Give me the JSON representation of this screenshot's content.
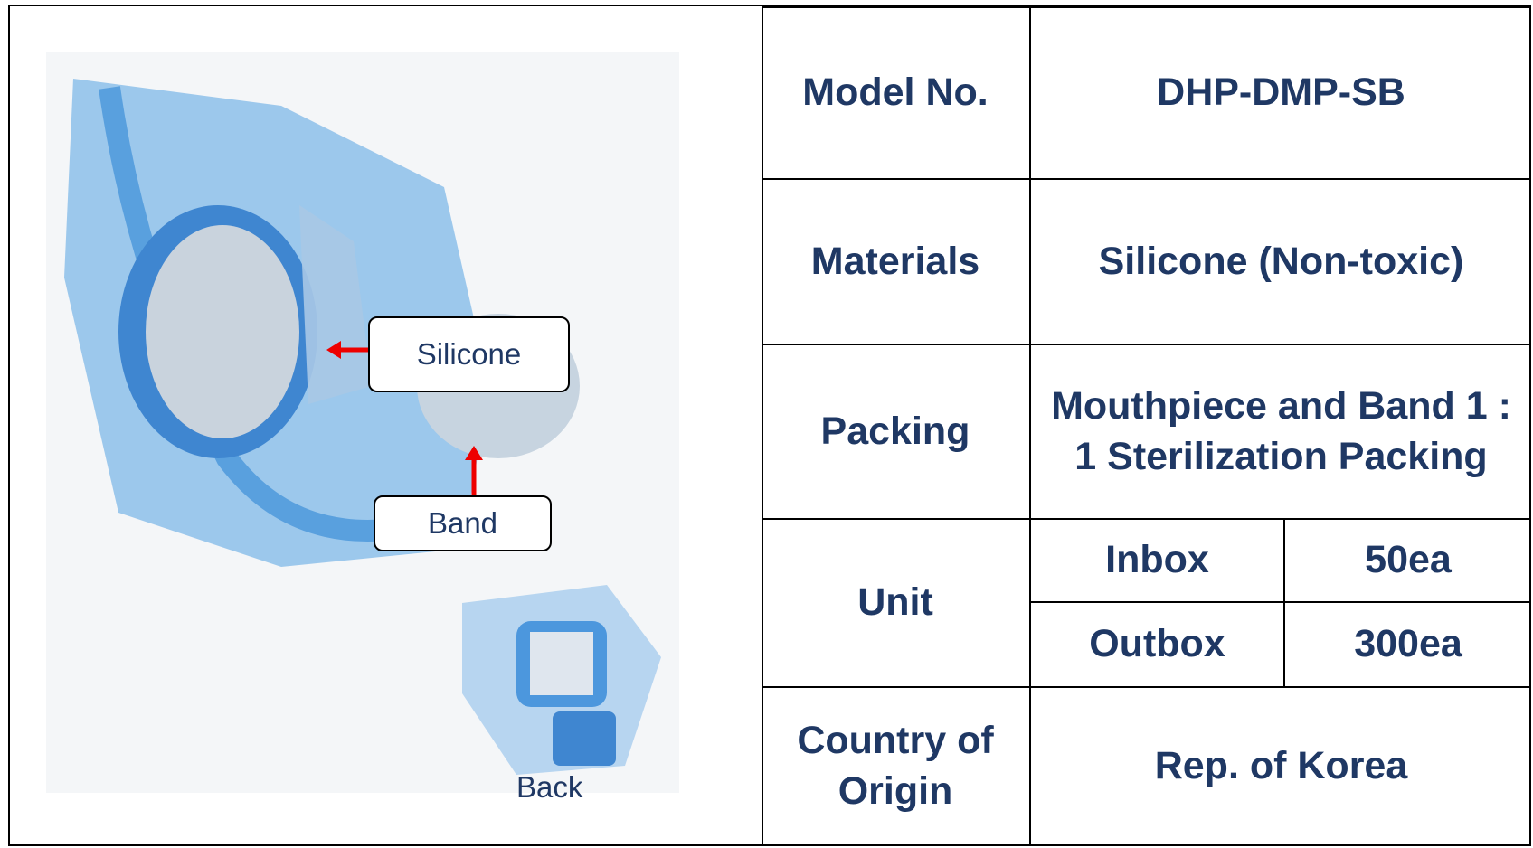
{
  "image": {
    "callouts": [
      "Silicone",
      "Band"
    ],
    "caption": "Back"
  },
  "table": {
    "rows": [
      {
        "label": "Model No.",
        "value": "DHP-DMP-SB"
      },
      {
        "label": "Materials",
        "value": "Silicone (Non-toxic)"
      },
      {
        "label": "Packing",
        "value": "Mouthpiece and Band 1 : 1 Sterilization Packing"
      },
      {
        "label": "Unit",
        "sub": [
          {
            "label": "Inbox",
            "value": "50ea"
          },
          {
            "label": "Outbox",
            "value": "300ea"
          }
        ]
      },
      {
        "label": "Country of Origin",
        "value": "Rep. of Korea"
      }
    ]
  }
}
